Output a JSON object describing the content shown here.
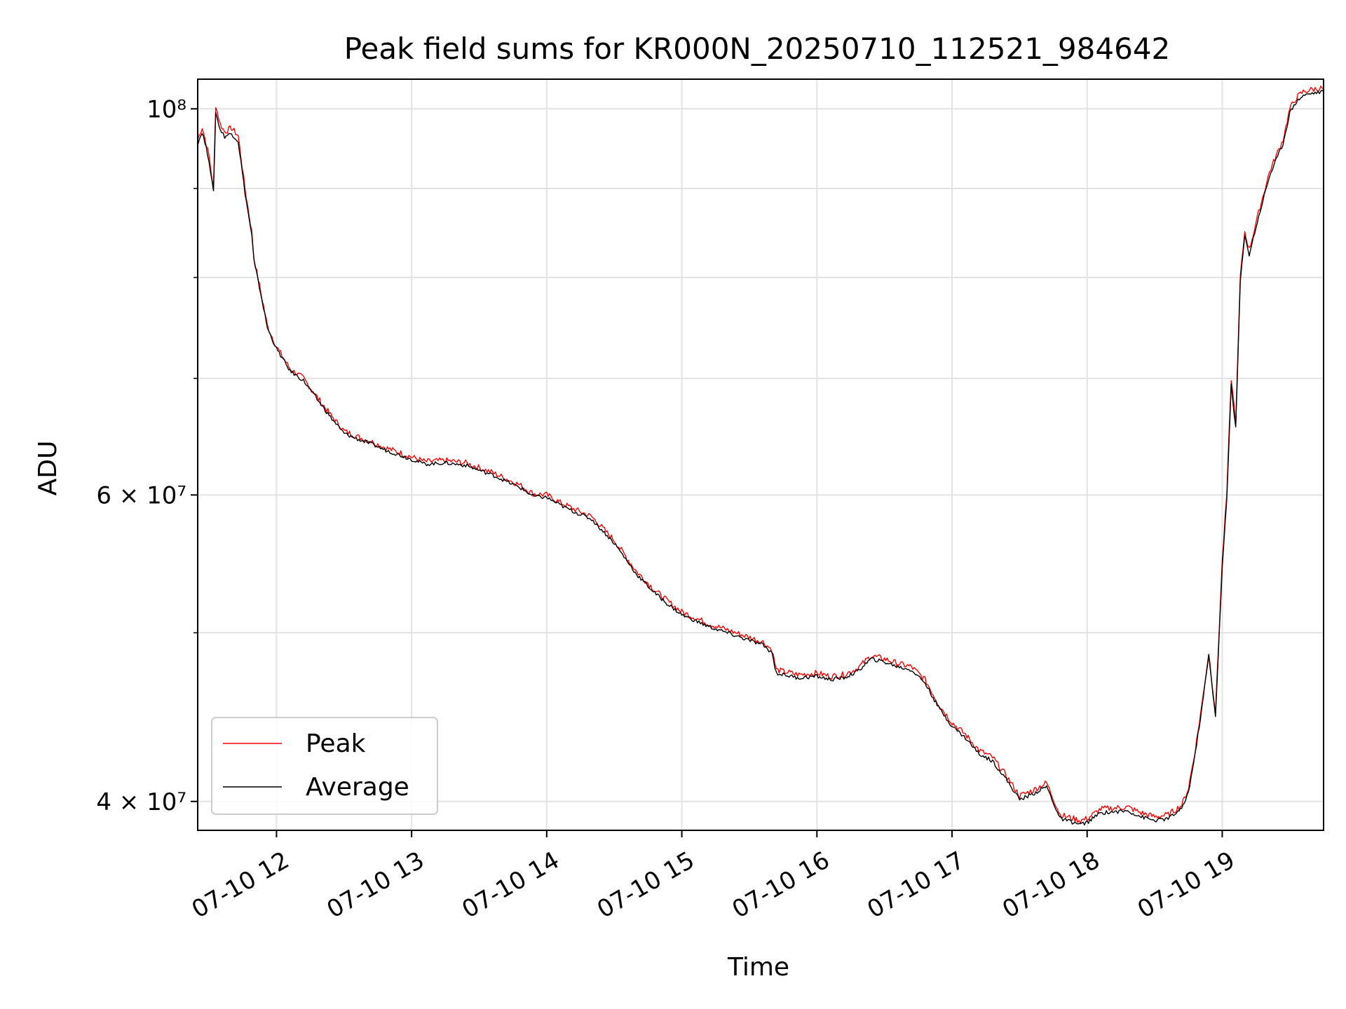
{
  "chart_data": {
    "type": "line",
    "title": "Peak field sums for KR000N_20250710_112521_984642",
    "xlabel": "Time",
    "ylabel": "ADU",
    "y_scale": "log",
    "xlim": [
      "2025-07-10 11:25",
      "2025-07-10 19:45"
    ],
    "ylim": [
      38500000,
      104000000
    ],
    "x_ticks": [
      "07-10 12",
      "07-10 13",
      "07-10 14",
      "07-10 15",
      "07-10 16",
      "07-10 17",
      "07-10 18",
      "07-10 19"
    ],
    "y_major_ticks": [
      {
        "value": 40000000,
        "label": "4 × 10⁷"
      },
      {
        "value": 60000000,
        "label": "6 × 10⁷"
      },
      {
        "value": 100000000,
        "label": "10⁸"
      }
    ],
    "y_minor_ticks": [
      50000000,
      70000000,
      80000000,
      90000000
    ],
    "grid": true,
    "legend_position": "lower-left",
    "colors": {
      "Peak": "#ff0000",
      "Average": "#000000",
      "grid": "#e3e3e3"
    },
    "series": [
      {
        "name": "Peak",
        "x": [
          "11:25",
          "11:27",
          "11:30",
          "11:32",
          "11:33",
          "11:35",
          "11:37",
          "11:40",
          "11:43",
          "11:46",
          "11:49",
          "11:50",
          "11:53",
          "11:56",
          "12:00",
          "12:06",
          "12:12",
          "12:18",
          "12:24",
          "12:30",
          "12:36",
          "12:42",
          "12:48",
          "12:54",
          "13:00",
          "13:06",
          "13:15",
          "13:24",
          "13:36",
          "13:48",
          "13:54",
          "14:00",
          "14:06",
          "14:12",
          "14:20",
          "14:30",
          "14:40",
          "14:48",
          "14:54",
          "15:00",
          "15:12",
          "15:24",
          "15:36",
          "15:40",
          "15:42",
          "15:52",
          "16:00",
          "16:06",
          "16:12",
          "16:18",
          "16:24",
          "16:30",
          "16:36",
          "16:42",
          "16:48",
          "16:54",
          "17:00",
          "17:06",
          "17:12",
          "17:18",
          "17:24",
          "17:30",
          "17:36",
          "17:42",
          "17:48",
          "17:51",
          "17:54",
          "17:57",
          "18:00",
          "18:06",
          "18:18",
          "18:24",
          "18:30",
          "18:36",
          "18:42",
          "18:45",
          "18:48",
          "18:51",
          "18:54",
          "18:57",
          "19:00",
          "19:02",
          "19:04",
          "19:06",
          "19:08",
          "19:10",
          "19:12",
          "19:15",
          "19:18",
          "19:21",
          "19:24",
          "19:27",
          "19:30",
          "19:33",
          "19:36",
          "19:40",
          "19:45"
        ],
        "values": [
          96000000,
          97600000,
          94000000,
          90000000,
          100500000,
          98000000,
          97000000,
          97500000,
          96500000,
          90000000,
          85000000,
          82000000,
          78500000,
          75000000,
          73000000,
          70900000,
          70000000,
          68300000,
          66700000,
          65300000,
          64800000,
          64400000,
          63900000,
          63500000,
          63100000,
          62700000,
          62800000,
          62600000,
          61800000,
          60800000,
          60100000,
          60000000,
          59400000,
          58900000,
          58300000,
          56500000,
          54200000,
          52900000,
          52100000,
          51400000,
          50600000,
          50000000,
          49400000,
          48900000,
          47600000,
          47300000,
          47400000,
          47200000,
          47300000,
          47700000,
          48500000,
          48300000,
          48000000,
          47800000,
          47000000,
          45500000,
          44400000,
          43700000,
          42800000,
          42400000,
          41400000,
          40300000,
          40600000,
          41000000,
          39300000,
          39200000,
          39100000,
          39000000,
          39100000,
          39600000,
          39700000,
          39400000,
          39200000,
          39300000,
          39800000,
          40700000,
          42800000,
          45500000,
          48700000,
          45000000,
          55000000,
          60000000,
          70000000,
          66000000,
          80000000,
          85000000,
          83000000,
          86000000,
          89000000,
          92000000,
          94000000,
          96000000,
          100000000,
          101500000,
          102300000,
          102600000,
          102800000
        ]
      },
      {
        "name": "Average",
        "x": [
          "11:25",
          "11:27",
          "11:30",
          "11:32",
          "11:33",
          "11:35",
          "11:37",
          "11:40",
          "11:43",
          "11:46",
          "11:49",
          "11:50",
          "11:53",
          "11:56",
          "12:00",
          "12:06",
          "12:12",
          "12:18",
          "12:24",
          "12:30",
          "12:36",
          "12:42",
          "12:48",
          "12:54",
          "13:00",
          "13:06",
          "13:15",
          "13:24",
          "13:36",
          "13:48",
          "13:54",
          "14:00",
          "14:06",
          "14:12",
          "14:20",
          "14:30",
          "14:40",
          "14:48",
          "14:54",
          "15:00",
          "15:12",
          "15:24",
          "15:36",
          "15:40",
          "15:42",
          "15:52",
          "16:00",
          "16:06",
          "16:12",
          "16:18",
          "16:24",
          "16:30",
          "16:36",
          "16:42",
          "16:48",
          "16:54",
          "17:00",
          "17:06",
          "17:12",
          "17:18",
          "17:24",
          "17:30",
          "17:36",
          "17:42",
          "17:48",
          "17:51",
          "17:54",
          "17:57",
          "18:00",
          "18:06",
          "18:18",
          "18:24",
          "18:30",
          "18:36",
          "18:42",
          "18:45",
          "18:48",
          "18:51",
          "18:54",
          "18:57",
          "19:00",
          "19:02",
          "19:04",
          "19:06",
          "19:08",
          "19:10",
          "19:12",
          "19:15",
          "19:18",
          "19:21",
          "19:24",
          "19:27",
          "19:30",
          "19:33",
          "19:36",
          "19:40",
          "19:45"
        ],
        "values": [
          95500000,
          97000000,
          93500000,
          89500000,
          99500000,
          97300000,
          96400000,
          96800000,
          95800000,
          89500000,
          84600000,
          81800000,
          78300000,
          74800000,
          72800000,
          70700000,
          69800000,
          68100000,
          66500000,
          65100000,
          64600000,
          64200000,
          63700000,
          63300000,
          62900000,
          62500000,
          62600000,
          62400000,
          61600000,
          60600000,
          59900000,
          59800000,
          59200000,
          58700000,
          58100000,
          56300000,
          54000000,
          52700000,
          51900000,
          51200000,
          50400000,
          49800000,
          49200000,
          48700000,
          47400000,
          47100000,
          47200000,
          47000000,
          47100000,
          47500000,
          48300000,
          48100000,
          47800000,
          47600000,
          46800000,
          45300000,
          44200000,
          43500000,
          42600000,
          42200000,
          41200000,
          40100000,
          40400000,
          40800000,
          39100000,
          39000000,
          38900000,
          38800000,
          38900000,
          39400000,
          39500000,
          39200000,
          39000000,
          39100000,
          39600000,
          40500000,
          42600000,
          45300000,
          48500000,
          44800000,
          54500000,
          59500000,
          69500000,
          65500000,
          79500000,
          84500000,
          82500000,
          85500000,
          88500000,
          91500000,
          93500000,
          95500000,
          99500000,
          101000000,
          101800000,
          102100000,
          102300000
        ]
      }
    ]
  }
}
